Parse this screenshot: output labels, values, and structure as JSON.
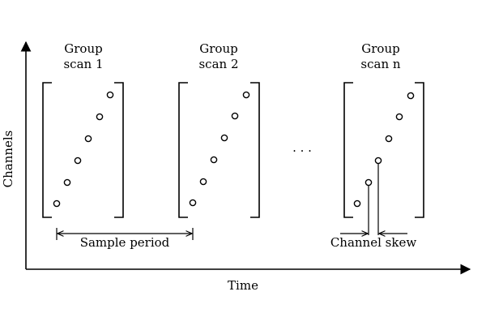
{
  "axes": {
    "x_label": "Time",
    "y_label": "Channels"
  },
  "groups": [
    {
      "line1": "Group",
      "line2": "scan 1"
    },
    {
      "line1": "Group",
      "line2": "scan 2"
    },
    {
      "line1": "Group",
      "line2": "scan n"
    }
  ],
  "ellipsis": ". . .",
  "annotations": {
    "sample_period": "Sample period",
    "channel_skew": "Channel skew"
  }
}
